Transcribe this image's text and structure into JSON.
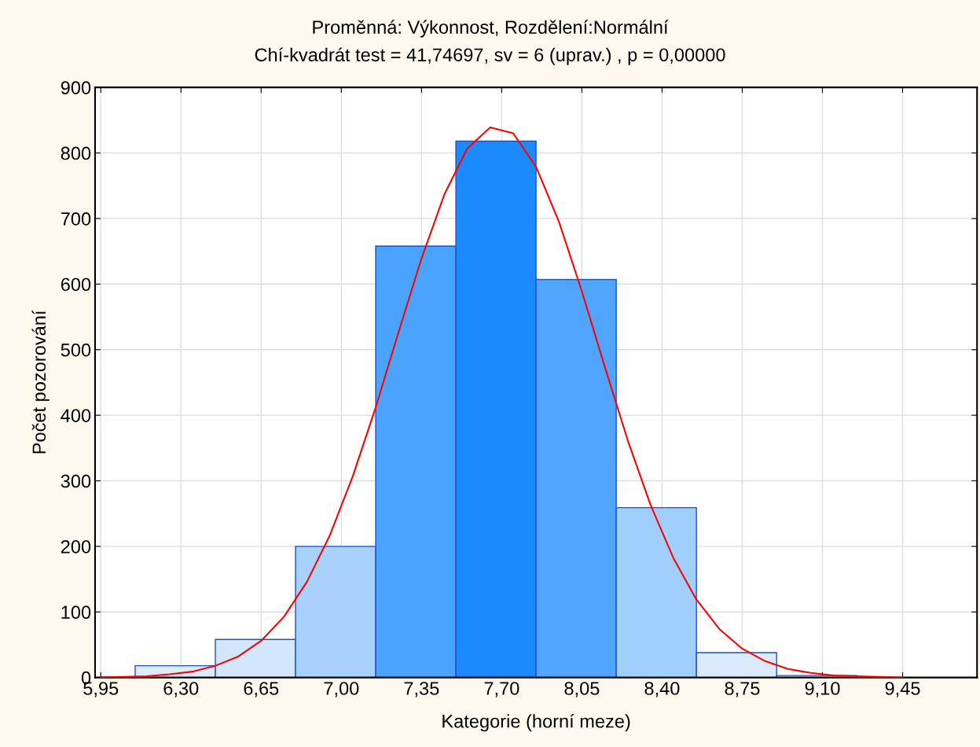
{
  "chart_data": {
    "type": "histogram",
    "title": "Proměnná: Výkonnost, Rozdělení:Normální",
    "subtitle": "Chí-kvadrát test = 41,74697, sv = 6 (uprav.) , p = 0,00000",
    "xlabel": "Kategorie (horní meze)",
    "ylabel": "Počet pozorování",
    "series": [
      {
        "bins": [
          6.1,
          6.45,
          6.8,
          7.15,
          7.5,
          7.85,
          8.2,
          8.55,
          8.9,
          9.25
        ],
        "values": [
          18,
          58,
          200,
          658,
          818,
          607,
          259,
          38,
          3
        ],
        "colors": [
          "#dcecfd",
          "#d2e7fd",
          "#a8d2fd",
          "#4aa3ff",
          "#1b8aff",
          "#50a6ff",
          "#a0cefd",
          "#dbebfd",
          "#e0eefd"
        ]
      },
      {
        "type": "line",
        "color": "#ff0000",
        "x": [
          5.95,
          6.05,
          6.15,
          6.25,
          6.35,
          6.45,
          6.55,
          6.65,
          6.75,
          6.85,
          6.95,
          7.05,
          7.15,
          7.25,
          7.35,
          7.45,
          7.55,
          7.65,
          7.75,
          7.85,
          7.95,
          8.05,
          8.15,
          8.25,
          8.35,
          8.45,
          8.55,
          8.65,
          8.75,
          8.85,
          8.95,
          9.05,
          9.15,
          9.25,
          9.35,
          9.45
        ],
        "values": [
          0,
          1,
          2,
          5,
          9,
          18,
          32,
          56,
          93,
          146,
          217,
          307,
          412,
          527,
          639,
          737,
          807,
          839,
          830,
          779,
          695,
          589,
          474,
          362,
          263,
          182,
          119,
          74,
          44,
          25,
          13,
          7,
          3,
          2,
          1,
          0
        ]
      }
    ],
    "xlim": [
      5.925,
      9.775
    ],
    "xticks": [
      {
        "value": 5.95,
        "label": "5,95"
      },
      {
        "value": 6.3,
        "label": "6,30"
      },
      {
        "value": 6.65,
        "label": "6,65"
      },
      {
        "value": 7.0,
        "label": "7,00"
      },
      {
        "value": 7.35,
        "label": "7,35"
      },
      {
        "value": 7.7,
        "label": "7,70"
      },
      {
        "value": 8.05,
        "label": "8,05"
      },
      {
        "value": 8.4,
        "label": "8,40"
      },
      {
        "value": 8.75,
        "label": "8,75"
      },
      {
        "value": 9.1,
        "label": "9,10"
      },
      {
        "value": 9.45,
        "label": "9,45"
      }
    ],
    "ylim": [
      0,
      900
    ],
    "yticks": [
      0,
      100,
      200,
      300,
      400,
      500,
      600,
      700,
      800,
      900
    ],
    "grid": true
  }
}
